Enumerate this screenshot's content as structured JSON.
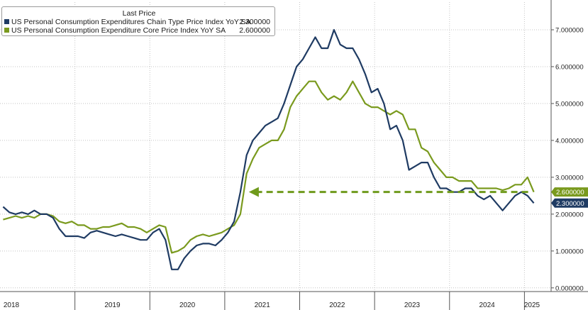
{
  "chart_data": {
    "type": "line",
    "legend": {
      "title": "Last Price",
      "placement": "top-left"
    },
    "series": [
      {
        "name": "US Personal Consumption Expenditures Chain Type Price Index YoY SA",
        "last_price": "2.300000",
        "color": "#1f3b63",
        "x": [
          "2018-01",
          "2018-02",
          "2018-03",
          "2018-04",
          "2018-05",
          "2018-06",
          "2018-07",
          "2018-08",
          "2018-09",
          "2018-10",
          "2018-11",
          "2018-12",
          "2019-01",
          "2019-02",
          "2019-03",
          "2019-04",
          "2019-05",
          "2019-06",
          "2019-07",
          "2019-08",
          "2019-09",
          "2019-10",
          "2019-11",
          "2019-12",
          "2020-01",
          "2020-02",
          "2020-03",
          "2020-04",
          "2020-05",
          "2020-06",
          "2020-07",
          "2020-08",
          "2020-09",
          "2020-10",
          "2020-11",
          "2020-12",
          "2021-01",
          "2021-02",
          "2021-03",
          "2021-04",
          "2021-05",
          "2021-06",
          "2021-07",
          "2021-08",
          "2021-09",
          "2021-10",
          "2021-11",
          "2021-12",
          "2022-01",
          "2022-02",
          "2022-03",
          "2022-04",
          "2022-05",
          "2022-06",
          "2022-07",
          "2022-08",
          "2022-09",
          "2022-10",
          "2022-11",
          "2022-12",
          "2023-01",
          "2023-02",
          "2023-03",
          "2023-04",
          "2023-05",
          "2023-06",
          "2023-07",
          "2023-08",
          "2023-09",
          "2023-10",
          "2023-11",
          "2023-12",
          "2024-01",
          "2024-02",
          "2024-03",
          "2024-04",
          "2024-05",
          "2024-06",
          "2024-07",
          "2024-08",
          "2024-09",
          "2024-10",
          "2024-11",
          "2024-12",
          "2025-01",
          "2025-02"
        ],
        "values": [
          2.2,
          2.05,
          2.0,
          2.05,
          2.0,
          2.1,
          2.0,
          2.0,
          1.9,
          1.6,
          1.4,
          1.4,
          1.4,
          1.35,
          1.5,
          1.55,
          1.5,
          1.45,
          1.4,
          1.45,
          1.4,
          1.35,
          1.3,
          1.3,
          1.5,
          1.6,
          1.3,
          0.5,
          0.5,
          0.8,
          1.0,
          1.15,
          1.2,
          1.2,
          1.15,
          1.3,
          1.5,
          1.8,
          2.6,
          3.6,
          4.0,
          4.2,
          4.4,
          4.5,
          4.6,
          5.0,
          5.5,
          6.0,
          6.2,
          6.5,
          6.8,
          6.5,
          6.5,
          7.0,
          6.6,
          6.5,
          6.5,
          6.2,
          5.8,
          5.3,
          5.4,
          5.0,
          4.3,
          4.4,
          4.0,
          3.2,
          3.3,
          3.4,
          3.4,
          3.0,
          2.7,
          2.7,
          2.6,
          2.6,
          2.7,
          2.7,
          2.5,
          2.4,
          2.5,
          2.3,
          2.1,
          2.3,
          2.5,
          2.6,
          2.5,
          2.3
        ]
      },
      {
        "name": "US Personal Consumption Expenditure Core Price Index YoY SA",
        "last_price": "2.600000",
        "color": "#7a9a1e",
        "x": [
          "2018-01",
          "2018-02",
          "2018-03",
          "2018-04",
          "2018-05",
          "2018-06",
          "2018-07",
          "2018-08",
          "2018-09",
          "2018-10",
          "2018-11",
          "2018-12",
          "2019-01",
          "2019-02",
          "2019-03",
          "2019-04",
          "2019-05",
          "2019-06",
          "2019-07",
          "2019-08",
          "2019-09",
          "2019-10",
          "2019-11",
          "2019-12",
          "2020-01",
          "2020-02",
          "2020-03",
          "2020-04",
          "2020-05",
          "2020-06",
          "2020-07",
          "2020-08",
          "2020-09",
          "2020-10",
          "2020-11",
          "2020-12",
          "2021-01",
          "2021-02",
          "2021-03",
          "2021-04",
          "2021-05",
          "2021-06",
          "2021-07",
          "2021-08",
          "2021-09",
          "2021-10",
          "2021-11",
          "2021-12",
          "2022-01",
          "2022-02",
          "2022-03",
          "2022-04",
          "2022-05",
          "2022-06",
          "2022-07",
          "2022-08",
          "2022-09",
          "2022-10",
          "2022-11",
          "2022-12",
          "2023-01",
          "2023-02",
          "2023-03",
          "2023-04",
          "2023-05",
          "2023-06",
          "2023-07",
          "2023-08",
          "2023-09",
          "2023-10",
          "2023-11",
          "2023-12",
          "2024-01",
          "2024-02",
          "2024-03",
          "2024-04",
          "2024-05",
          "2024-06",
          "2024-07",
          "2024-08",
          "2024-09",
          "2024-10",
          "2024-11",
          "2024-12",
          "2025-01",
          "2025-02"
        ],
        "values": [
          1.85,
          1.9,
          1.95,
          1.9,
          1.95,
          1.9,
          2.0,
          2.0,
          1.95,
          1.8,
          1.75,
          1.8,
          1.7,
          1.7,
          1.6,
          1.6,
          1.65,
          1.65,
          1.7,
          1.75,
          1.65,
          1.65,
          1.6,
          1.5,
          1.6,
          1.7,
          1.65,
          0.95,
          1.0,
          1.1,
          1.3,
          1.4,
          1.45,
          1.4,
          1.45,
          1.5,
          1.6,
          1.7,
          2.0,
          3.1,
          3.5,
          3.8,
          3.9,
          4.0,
          4.0,
          4.3,
          4.9,
          5.2,
          5.4,
          5.6,
          5.6,
          5.3,
          5.1,
          5.2,
          5.1,
          5.3,
          5.6,
          5.3,
          5.0,
          4.9,
          4.9,
          4.8,
          4.7,
          4.8,
          4.7,
          4.3,
          4.3,
          3.8,
          3.7,
          3.4,
          3.2,
          3.0,
          3.0,
          2.9,
          2.9,
          2.9,
          2.7,
          2.7,
          2.7,
          2.7,
          2.65,
          2.7,
          2.8,
          2.8,
          3.0,
          2.6
        ]
      }
    ],
    "y_axis": {
      "position": "right",
      "ylim": [
        -0.1,
        7.75
      ],
      "ticks": [
        0,
        1,
        2,
        3,
        4,
        5,
        6,
        7
      ],
      "tick_labels": [
        "0.000000",
        "1.000000",
        "2.000000",
        "3.000000",
        "4.000000",
        "5.000000",
        "6.000000",
        "7.000000"
      ]
    },
    "x_axis": {
      "tick_labels": [
        "2018",
        "2019",
        "2020",
        "2021",
        "2022",
        "2023",
        "2024",
        "2025"
      ]
    },
    "grid": true,
    "annotations": [
      {
        "type": "dashed-arrow",
        "from_x": "2025-02",
        "to_x": "2021-03",
        "y": 2.6,
        "color": "#6f9a1c",
        "direction": "left"
      }
    ]
  }
}
